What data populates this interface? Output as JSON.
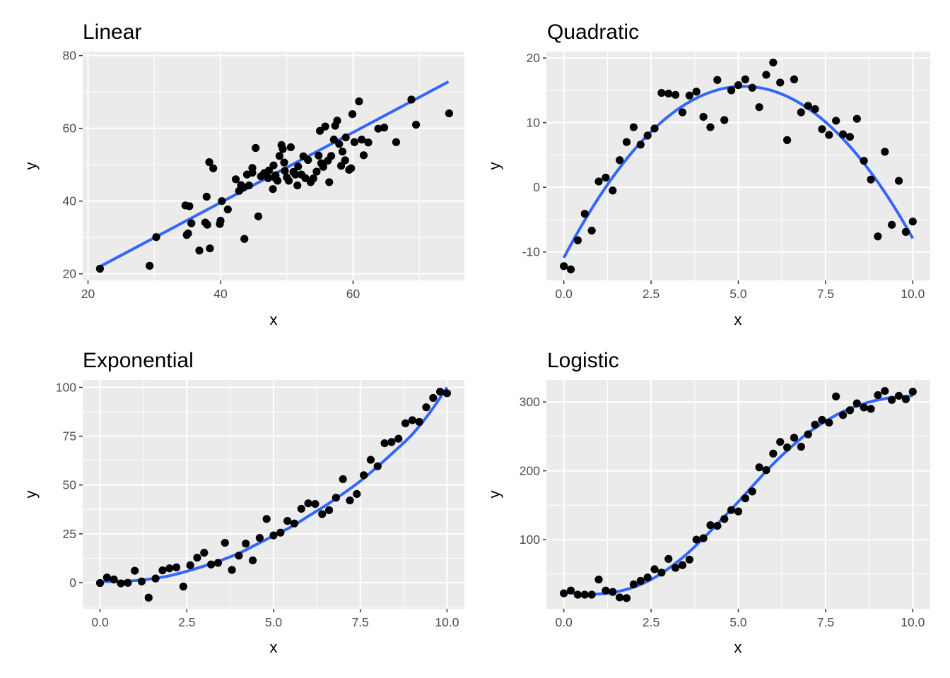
{
  "chart_data": [
    {
      "type": "scatter",
      "title": "Linear",
      "xlabel": "x",
      "ylabel": "y",
      "xlim": [
        19.2,
        76.8
      ],
      "ylim": [
        18.2,
        81.1
      ],
      "xticks": [
        20,
        40,
        60
      ],
      "yticks": [
        20,
        40,
        60,
        80
      ],
      "xtick_labels": [
        "20",
        "40",
        "60"
      ],
      "ytick_labels": [
        "20",
        "40",
        "60",
        "80"
      ],
      "grid": true,
      "colors": {
        "points": "#000000",
        "fit": "#3366FF",
        "panel": "#EBEBEB"
      },
      "fit": {
        "kind": "linear",
        "x": [
          21.8,
          74.4
        ],
        "y": [
          22.0,
          72.8
        ]
      },
      "points": {
        "x": [
          21.8,
          29.3,
          30.3,
          34.7,
          34.9,
          35.1,
          35.6,
          35.3,
          36.8,
          37.9,
          37.7,
          38.4,
          38.0,
          38.3,
          38.9,
          39.9,
          40.0,
          40.2,
          41.1,
          42.3,
          43.1,
          42.8,
          43.4,
          43.6,
          44.0,
          44.3,
          44.8,
          44.8,
          45.3,
          45.7,
          46.1,
          46.6,
          47.2,
          47.3,
          47.9,
          48.0,
          48.3,
          48.3,
          48.6,
          48.9,
          49.2,
          49.6,
          49.7,
          49.4,
          50.0,
          50.3,
          50.6,
          51.0,
          51.3,
          51.6,
          51.7,
          52.2,
          52.5,
          52.8,
          53.2,
          53.6,
          54.0,
          54.5,
          54.8,
          55.0,
          55.2,
          55.5,
          55.8,
          56.2,
          56.4,
          56.7,
          57.1,
          57.3,
          57.6,
          57.9,
          58.2,
          58.4,
          58.8,
          58.9,
          59.4,
          59.7,
          59.9,
          60.2,
          60.9,
          61.3,
          61.6,
          62.3,
          63.8,
          64.7,
          66.5,
          68.8,
          69.5,
          74.5
        ],
        "y": [
          21.4,
          22.2,
          30.1,
          38.8,
          30.7,
          31.1,
          33.9,
          38.6,
          26.4,
          41.2,
          34.1,
          27.0,
          33.5,
          50.7,
          49.0,
          33.7,
          34.6,
          40.0,
          37.7,
          46.0,
          44.4,
          42.8,
          43.7,
          29.6,
          47.3,
          44.3,
          49.1,
          47.8,
          54.6,
          35.8,
          46.8,
          47.7,
          46.3,
          48.4,
          43.3,
          49.8,
          47.1,
          46.3,
          45.6,
          52.4,
          55.4,
          50.6,
          48.3,
          54.3,
          46.5,
          45.6,
          54.8,
          48.0,
          47.3,
          44.3,
          49.5,
          47.3,
          52.3,
          46.3,
          51.3,
          45.2,
          46.2,
          48.1,
          52.5,
          59.3,
          50.4,
          49.4,
          60.5,
          51.1,
          45.2,
          52.4,
          56.9,
          60.7,
          62.1,
          55.7,
          49.7,
          53.6,
          51.2,
          57.5,
          48.6,
          49.0,
          63.9,
          56.2,
          67.4,
          56.9,
          52.6,
          56.1,
          59.9,
          60.2,
          56.2,
          67.9,
          61.0,
          64.1
        ]
      }
    },
    {
      "type": "scatter",
      "title": "Quadratic",
      "xlabel": "x",
      "ylabel": "y",
      "xlim": [
        -0.5,
        10.5
      ],
      "ylim": [
        -14.4,
        21.0
      ],
      "xticks": [
        0,
        2.5,
        5,
        7.5,
        10
      ],
      "yticks": [
        -10,
        0,
        10,
        20
      ],
      "xtick_labels": [
        "0.0",
        "2.5",
        "5.0",
        "7.5",
        "10.0"
      ],
      "ytick_labels": [
        "-10",
        "0",
        "10",
        "20"
      ],
      "grid": true,
      "colors": {
        "points": "#000000",
        "fit": "#3366FF",
        "panel": "#EBEBEB"
      },
      "fit": {
        "kind": "quadratic",
        "a": -1.0,
        "b": 10.3,
        "c": -10.9,
        "x_range": [
          0,
          10
        ]
      },
      "points": {
        "x": [
          0.0,
          0.2,
          0.4,
          0.6,
          0.8,
          1.0,
          1.2,
          1.4,
          1.6,
          1.8,
          2.0,
          2.2,
          2.4,
          2.6,
          2.8,
          3.0,
          3.2,
          3.4,
          3.6,
          3.8,
          4.0,
          4.2,
          4.4,
          4.6,
          4.8,
          5.0,
          5.2,
          5.4,
          5.6,
          5.8,
          6.0,
          6.2,
          6.4,
          6.6,
          6.8,
          7.0,
          7.2,
          7.4,
          7.6,
          7.8,
          8.0,
          8.2,
          8.4,
          8.6,
          8.8,
          9.0,
          9.2,
          9.4,
          9.6,
          9.8,
          10.0
        ],
        "y": [
          -12.2,
          -12.7,
          -8.2,
          -4.1,
          -6.7,
          0.9,
          1.5,
          -0.5,
          4.2,
          7.0,
          9.3,
          6.6,
          8.0,
          9.1,
          14.6,
          14.5,
          14.3,
          11.6,
          14.2,
          14.8,
          10.9,
          9.3,
          16.6,
          10.4,
          15.0,
          15.8,
          16.7,
          15.4,
          12.4,
          17.4,
          19.3,
          16.2,
          7.3,
          16.7,
          11.6,
          12.6,
          12.1,
          9.0,
          8.1,
          10.3,
          8.2,
          7.8,
          10.6,
          4.1,
          1.2,
          -7.6,
          5.5,
          -5.8,
          1.0,
          -6.9,
          -5.3
        ]
      }
    },
    {
      "type": "scatter",
      "title": "Exponential",
      "xlabel": "x",
      "ylabel": "y",
      "xlim": [
        -0.5,
        10.5
      ],
      "ylim": [
        -13.4,
        103.8
      ],
      "xticks": [
        0,
        2.5,
        5,
        7.5,
        10
      ],
      "yticks": [
        0,
        25,
        50,
        75,
        100
      ],
      "xtick_labels": [
        "0.0",
        "2.5",
        "5.0",
        "7.5",
        "10.0"
      ],
      "ytick_labels": [
        "0",
        "25",
        "50",
        "75",
        "100"
      ],
      "grid": true,
      "colors": {
        "points": "#000000",
        "fit": "#3366FF",
        "panel": "#EBEBEB"
      },
      "fit": {
        "kind": "smooth",
        "x": [
          0,
          0.5,
          1,
          1.5,
          2,
          2.5,
          3,
          3.5,
          4,
          4.5,
          5,
          5.5,
          6,
          6.5,
          7,
          7.5,
          8,
          8.5,
          9,
          9.5,
          10
        ],
        "y": [
          0.5,
          0.6,
          1.0,
          2.0,
          3.5,
          5.8,
          8.5,
          11.5,
          15.0,
          19.5,
          24.0,
          28.5,
          34.0,
          39.5,
          45.5,
          52.0,
          59.5,
          67.5,
          76.0,
          87.0,
          100.0
        ]
      },
      "points": {
        "x": [
          0.0,
          0.2,
          0.4,
          0.6,
          0.8,
          1.0,
          1.2,
          1.4,
          1.6,
          1.8,
          2.0,
          2.2,
          2.4,
          2.6,
          2.8,
          3.0,
          3.2,
          3.4,
          3.6,
          3.8,
          4.0,
          4.2,
          4.4,
          4.6,
          4.8,
          5.0,
          5.2,
          5.4,
          5.6,
          5.8,
          6.0,
          6.2,
          6.4,
          6.6,
          6.8,
          7.0,
          7.2,
          7.4,
          7.6,
          7.8,
          8.0,
          8.2,
          8.4,
          8.6,
          8.8,
          9.0,
          9.2,
          9.4,
          9.6,
          9.8,
          10.0
        ],
        "y": [
          -0.2,
          2.6,
          1.6,
          -0.4,
          -0.1,
          6.1,
          0.6,
          -7.7,
          2.1,
          6.3,
          7.3,
          7.8,
          -2.0,
          8.9,
          12.8,
          15.3,
          9.3,
          10.1,
          20.4,
          6.5,
          13.8,
          20.0,
          11.4,
          22.9,
          32.6,
          24.2,
          25.6,
          31.6,
          30.3,
          37.8,
          40.6,
          40.3,
          35.1,
          37.1,
          43.5,
          53.0,
          42.1,
          45.4,
          55.0,
          62.9,
          59.6,
          71.4,
          72.0,
          73.7,
          81.6,
          83.2,
          82.3,
          89.8,
          94.6,
          97.8,
          97.0
        ]
      }
    },
    {
      "type": "scatter",
      "title": "Logistic",
      "xlabel": "x",
      "ylabel": "y",
      "xlim": [
        -0.5,
        10.5
      ],
      "ylim": [
        -0.5,
        332.0
      ],
      "xticks": [
        0,
        2.5,
        5,
        7.5,
        10
      ],
      "yticks": [
        100,
        200,
        300
      ],
      "xtick_labels": [
        "0.0",
        "2.5",
        "5.0",
        "7.5",
        "10.0"
      ],
      "ytick_labels": [
        "100",
        "200",
        "300"
      ],
      "grid": true,
      "colors": {
        "points": "#000000",
        "fit": "#3366FF",
        "panel": "#EBEBEB"
      },
      "fit": {
        "kind": "smooth",
        "x": [
          0,
          0.5,
          1,
          1.5,
          2,
          2.5,
          3,
          3.5,
          4,
          4.5,
          5,
          5.5,
          6,
          6.5,
          7,
          7.5,
          8,
          8.5,
          9,
          9.5,
          10
        ],
        "y": [
          24,
          21,
          21,
          24,
          31,
          42,
          58,
          78,
          102,
          128,
          155,
          183,
          210,
          234,
          255,
          272,
          286,
          296,
          303,
          307,
          309
        ]
      },
      "points": {
        "x": [
          0.0,
          0.2,
          0.4,
          0.6,
          0.8,
          1.0,
          1.2,
          1.4,
          1.6,
          1.8,
          2.0,
          2.2,
          2.4,
          2.6,
          2.8,
          3.0,
          3.2,
          3.4,
          3.6,
          3.8,
          4.0,
          4.2,
          4.4,
          4.6,
          4.8,
          5.0,
          5.2,
          5.4,
          5.6,
          5.8,
          6.0,
          6.2,
          6.4,
          6.6,
          6.8,
          7.0,
          7.2,
          7.4,
          7.6,
          7.8,
          8.0,
          8.2,
          8.4,
          8.6,
          8.8,
          9.0,
          9.2,
          9.4,
          9.6,
          9.8,
          10.0
        ],
        "y": [
          22,
          26,
          20,
          20,
          20,
          42,
          26,
          24,
          16,
          15,
          35,
          40,
          45,
          57,
          52,
          72,
          59,
          63,
          71,
          100,
          102,
          121,
          120,
          130,
          143,
          141,
          160,
          170,
          205,
          201,
          225,
          242,
          234,
          248,
          235,
          253,
          267,
          274,
          270,
          308,
          281,
          288,
          298,
          292,
          290,
          310,
          316,
          303,
          309,
          304,
          315
        ]
      }
    }
  ]
}
